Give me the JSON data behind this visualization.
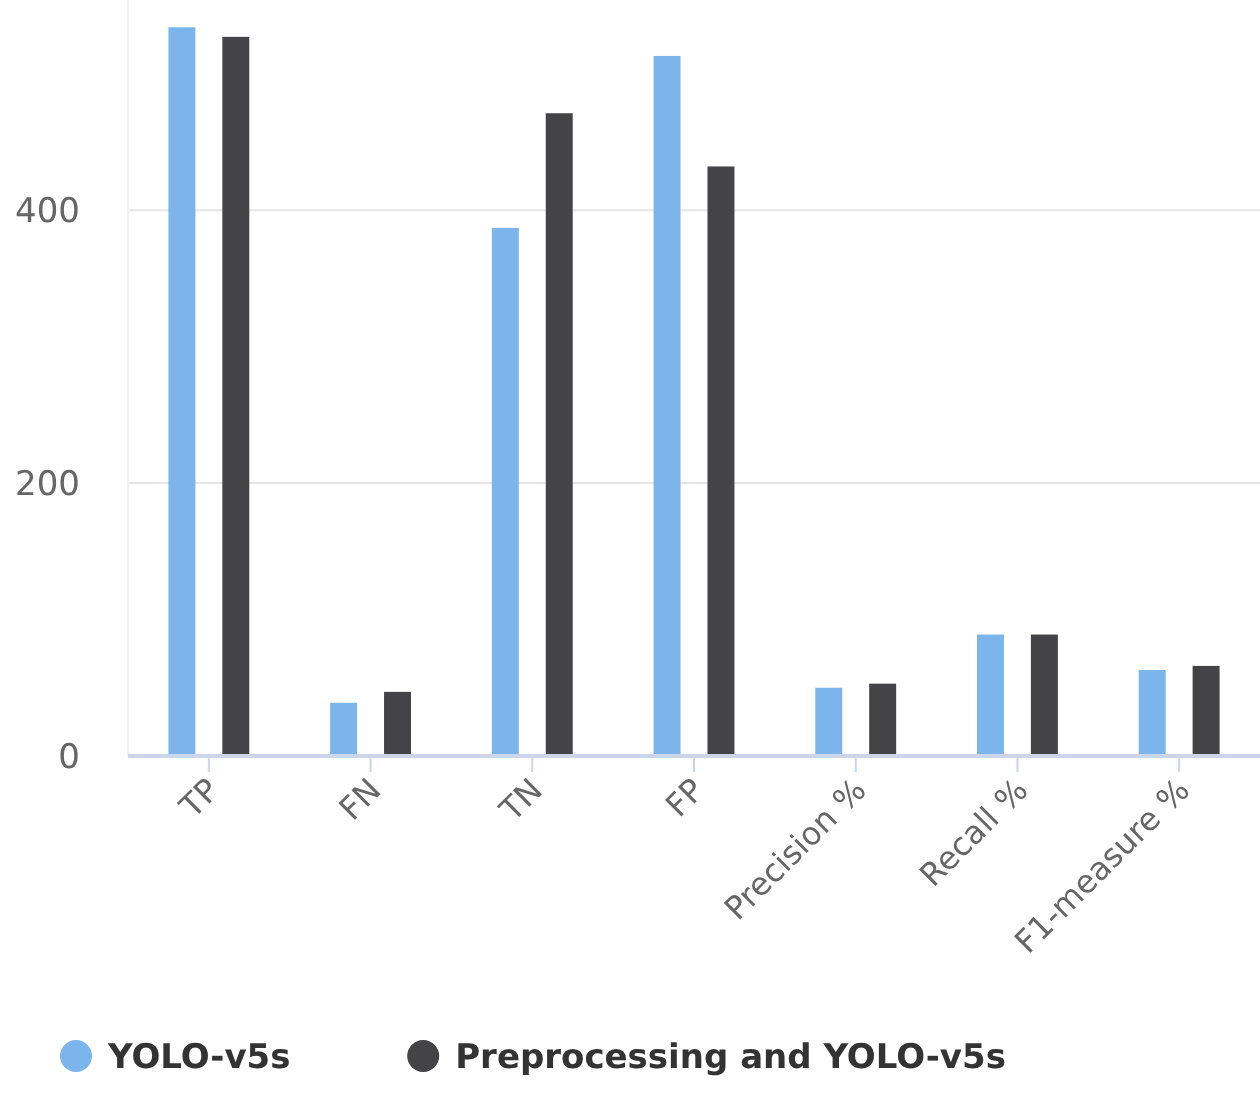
{
  "chart_data": {
    "type": "bar",
    "categories": [
      "TP",
      "FN",
      "TN",
      "FP",
      "Precision %",
      "Recall %",
      "F1-measure %"
    ],
    "series": [
      {
        "name": "YOLO-v5s",
        "color": "#7cb5ec",
        "values": [
          534,
          39,
          387,
          513,
          50,
          89,
          63
        ]
      },
      {
        "name": "Preprocessing and YOLO-v5s",
        "color": "#434348",
        "values": [
          527,
          47,
          471,
          432,
          53,
          89,
          66
        ]
      }
    ],
    "ylim": [
      0,
      554
    ],
    "yticks": [
      0,
      200,
      400
    ],
    "grid": "y",
    "legend": "bottom"
  }
}
